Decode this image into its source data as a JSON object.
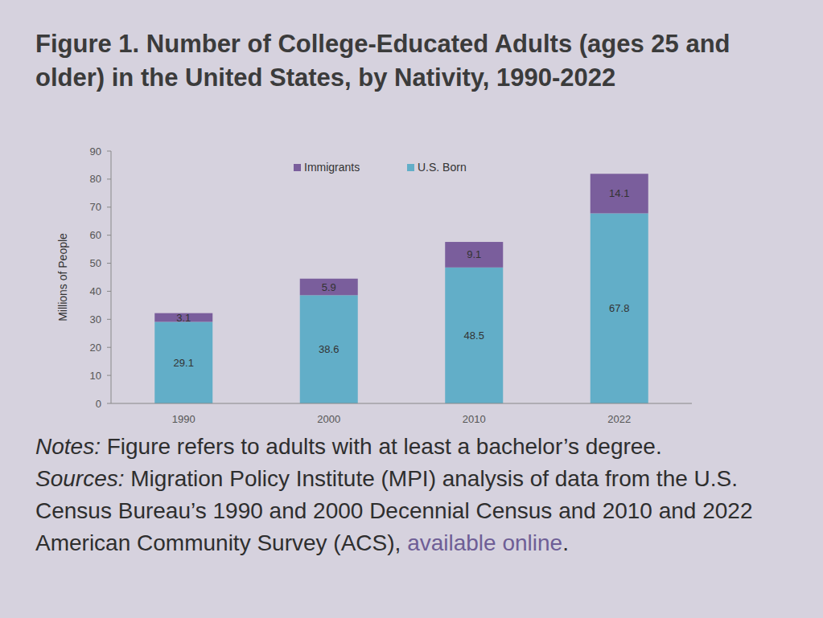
{
  "chart_data": {
    "type": "bar",
    "title": "Figure 1. Number of College-Educated Adults (ages 25 and older) in the United States, by Nativity, 1990-2022",
    "y_label": "Millions of People",
    "categories": [
      "1990",
      "2000",
      "2010",
      "2022"
    ],
    "series": [
      {
        "name": "U.S. Born",
        "color": "#62aec8",
        "values": [
          29.1,
          38.6,
          48.5,
          67.8
        ]
      },
      {
        "name": "Immigrants",
        "color": "#7a5e9c",
        "values": [
          3.1,
          5.9,
          9.1,
          14.1
        ]
      }
    ],
    "stacked": true,
    "data_labels": true,
    "legend": "top",
    "grid": false,
    "ylim": [
      0,
      90
    ],
    "yticks": [
      0,
      10,
      20,
      30,
      40,
      50,
      60,
      70,
      80,
      90
    ],
    "notes": {
      "label": "Notes:",
      "text": "Figure refers to adults with at least a bachelor’s degree."
    },
    "sources": {
      "label": "Sources:",
      "text": "Migration Policy Institute (MPI) analysis of data from the U.S. Census Bureau’s 1990 and 2000 Decennial Census and 2010 and 2022 American Community Survey (ACS),",
      "link": "available online",
      "after": "."
    }
  }
}
